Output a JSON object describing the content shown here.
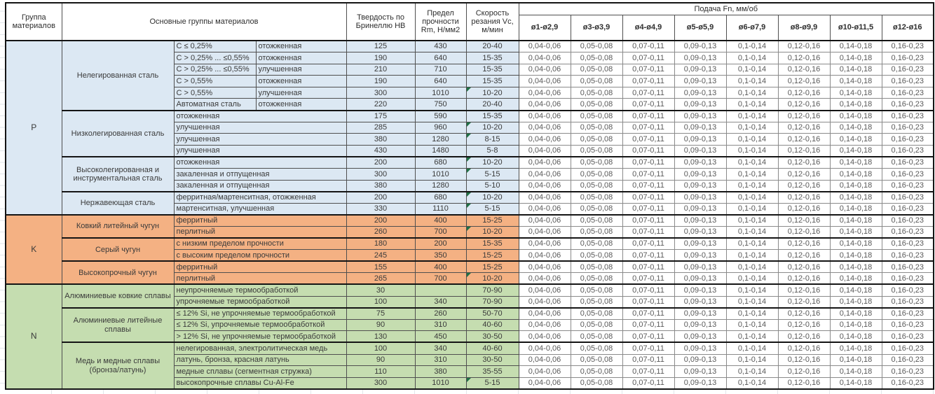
{
  "header": {
    "col_group": "Группа материалов",
    "col_main": "Основные группы материалов",
    "col_hardness": "Твердость по Бринеллю НВ",
    "col_strength": "Предел прочности Rm, Н/мм2",
    "col_speed": "Скорость резания Vc, м/мин",
    "feed_title": "Подача Fn, мм/об",
    "feed_cols": [
      "ø1-ø2,9",
      "ø3-ø3,9",
      "ø4-ø4,9",
      "ø5-ø5,9",
      "ø6-ø7,9",
      "ø8-ø9,9",
      "ø10-ø11,5",
      "ø12-ø16"
    ]
  },
  "feeds": [
    "0,04-0,06",
    "0,05-0,08",
    "0,07-0,11",
    "0,09-0,13",
    "0,1-0,14",
    "0,12-0,16",
    "0,14-0,18",
    "0,16-0,23"
  ],
  "colors": {
    "group_P": "#dce8f3",
    "group_K": "#f4b183",
    "group_N": "#c5ddb0",
    "marker": "#1e7145"
  },
  "groups": [
    {
      "code": "P",
      "color": "#dce8f3",
      "subgroups": [
        {
          "name": "Нелегированная сталь",
          "rows": [
            {
              "c": "C ≤ 0,25%",
              "s": "отожженная",
              "hb": "125",
              "rm": "430",
              "vc": "20-40",
              "m": false
            },
            {
              "c": "C > 0,25% ... ≤0,55%",
              "s": "отожженная",
              "hb": "190",
              "rm": "640",
              "vc": "15-35",
              "m": false
            },
            {
              "c": "C > 0,25% ... ≤0,55%",
              "s": "улучшенная",
              "hb": "210",
              "rm": "710",
              "vc": "15-35",
              "m": false
            },
            {
              "c": "C > 0,55%",
              "s": "отожженная",
              "hb": "190",
              "rm": "640",
              "vc": "15-35",
              "m": false
            },
            {
              "c": "C > 0,55%",
              "s": "улучшенная",
              "hb": "300",
              "rm": "1010",
              "vc": "10-20",
              "m": true
            },
            {
              "c": "Автоматная сталь",
              "s": "отожженная",
              "hb": "220",
              "rm": "750",
              "vc": "20-40",
              "m": false
            }
          ]
        },
        {
          "name": "Низколегированная сталь",
          "rows": [
            {
              "d": "отожженная",
              "hb": "175",
              "rm": "590",
              "vc": "15-35",
              "m": false
            },
            {
              "d": "улучшенная",
              "hb": "285",
              "rm": "960",
              "vc": "10-20",
              "m": true
            },
            {
              "d": "улучшенная",
              "hb": "380",
              "rm": "1280",
              "vc": "8-15",
              "m": true
            },
            {
              "d": "улучшенная",
              "hb": "430",
              "rm": "1480",
              "vc": "5-8",
              "m": false
            }
          ]
        },
        {
          "name": "Высоколегированная и инструментальная сталь",
          "rows": [
            {
              "d": "отожженная",
              "hb": "200",
              "rm": "680",
              "vc": "10-20",
              "m": true
            },
            {
              "d": "закаленная и отпущенная",
              "hb": "300",
              "rm": "1010",
              "vc": "5-15",
              "m": true
            },
            {
              "d": "закаленная и отпущенная",
              "hb": "380",
              "rm": "1280",
              "vc": "5-10",
              "m": false
            }
          ]
        },
        {
          "name": "Нержавеющая сталь",
          "rows": [
            {
              "d": "ферритная/мартенситная, отожженная",
              "hb": "200",
              "rm": "680",
              "vc": "10-20",
              "m": true
            },
            {
              "d": "мартенситная, улучшенная",
              "hb": "330",
              "rm": "1110",
              "vc": "5-15",
              "m": true
            }
          ]
        }
      ]
    },
    {
      "code": "K",
      "color": "#f4b183",
      "subgroups": [
        {
          "name": "Ковкий литейный чугун",
          "rows": [
            {
              "d": "ферритный",
              "hb": "200",
              "rm": "400",
              "vc": "15-25",
              "m": false
            },
            {
              "d": "перлитный",
              "hb": "260",
              "rm": "700",
              "vc": "10-20",
              "m": true
            }
          ]
        },
        {
          "name": "Серый чугун",
          "rows": [
            {
              "d": "с низким пределом прочности",
              "hb": "180",
              "rm": "200",
              "vc": "15-35",
              "m": false
            },
            {
              "d": "с высоким пределом прочности",
              "hb": "245",
              "rm": "350",
              "vc": "15-25",
              "m": false
            }
          ]
        },
        {
          "name": "Высокопрочный чугун",
          "rows": [
            {
              "d": "ферритный",
              "hb": "155",
              "rm": "400",
              "vc": "15-25",
              "m": false
            },
            {
              "d": "перлитный",
              "hb": "265",
              "rm": "700",
              "vc": "10-20",
              "m": true
            }
          ]
        }
      ]
    },
    {
      "code": "N",
      "color": "#c5ddb0",
      "subgroups": [
        {
          "name": "Алюминиевые ковкие сплавы",
          "rows": [
            {
              "d": "неупрочняемые термообработкой",
              "hb": "30",
              "rm": "",
              "vc": "70-90",
              "m": false
            },
            {
              "d": "упрочняемые термообработкой",
              "hb": "100",
              "rm": "340",
              "vc": "70-90",
              "m": false
            }
          ]
        },
        {
          "name": "Алюминиевые литейные сплавы",
          "rows": [
            {
              "d": "≤ 12% Si, не упрочняемые термообработкой",
              "hb": "75",
              "rm": "260",
              "vc": "50-70",
              "m": false
            },
            {
              "d": "≤ 12% Si, упрочняемые термообработкой",
              "hb": "90",
              "rm": "310",
              "vc": "40-60",
              "m": false
            },
            {
              "d": "> 12% Si, не упрочняемые термообработкой",
              "hb": "130",
              "rm": "450",
              "vc": "30-50",
              "m": false
            }
          ]
        },
        {
          "name": "Медь и медные сплавы (бронза/латунь)",
          "rows": [
            {
              "d": "нелегированная, электролитическая медь",
              "hb": "100",
              "rm": "340",
              "vc": "40-60",
              "m": false
            },
            {
              "d": "латунь, бронза, красная латунь",
              "hb": "90",
              "rm": "310",
              "vc": "30-50",
              "m": false
            },
            {
              "d": "медные сплавы (сегментная стружка)",
              "hb": "110",
              "rm": "380",
              "vc": "35-55",
              "m": false
            },
            {
              "d": "высокопрочные сплавы Cu-Al-Fe",
              "hb": "300",
              "rm": "1010",
              "vc": "5-15",
              "m": true
            }
          ]
        }
      ]
    }
  ]
}
